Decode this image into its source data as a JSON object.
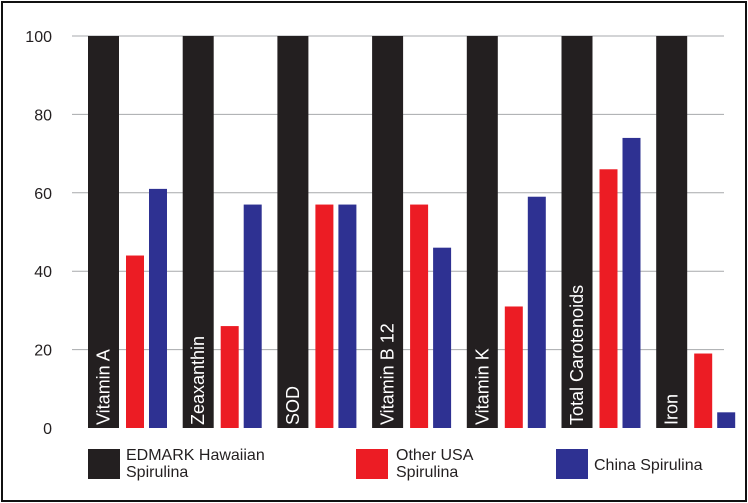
{
  "chart_data": {
    "type": "bar",
    "categories": [
      "Vitamin A",
      "Zeaxanthin",
      "SOD",
      "Vitamin B 12",
      "Vitamin K",
      "Total Carotenoids",
      "Iron"
    ],
    "series": [
      {
        "name": "EDMARK Hawaiian Spirulina",
        "values": [
          100,
          100,
          100,
          100,
          100,
          100,
          100
        ]
      },
      {
        "name": "Other USA Spirulina",
        "values": [
          44,
          26,
          57,
          57,
          31,
          66,
          19
        ]
      },
      {
        "name": "China Spirulina",
        "values": [
          61,
          57,
          57,
          46,
          59,
          74,
          4
        ]
      }
    ],
    "legend": [
      {
        "label": "EDMARK Hawaiian\nSpirulina"
      },
      {
        "label": "Other USA\nSpirulina"
      },
      {
        "label": "China Spirulina"
      }
    ],
    "colors": [
      "#231f20",
      "#ec1c24",
      "#2e3192"
    ],
    "yticks": [
      "0",
      "20",
      "40",
      "60",
      "80",
      "100"
    ],
    "ylim": [
      0,
      100
    ],
    "grid": true,
    "legend_position": "bottom"
  }
}
